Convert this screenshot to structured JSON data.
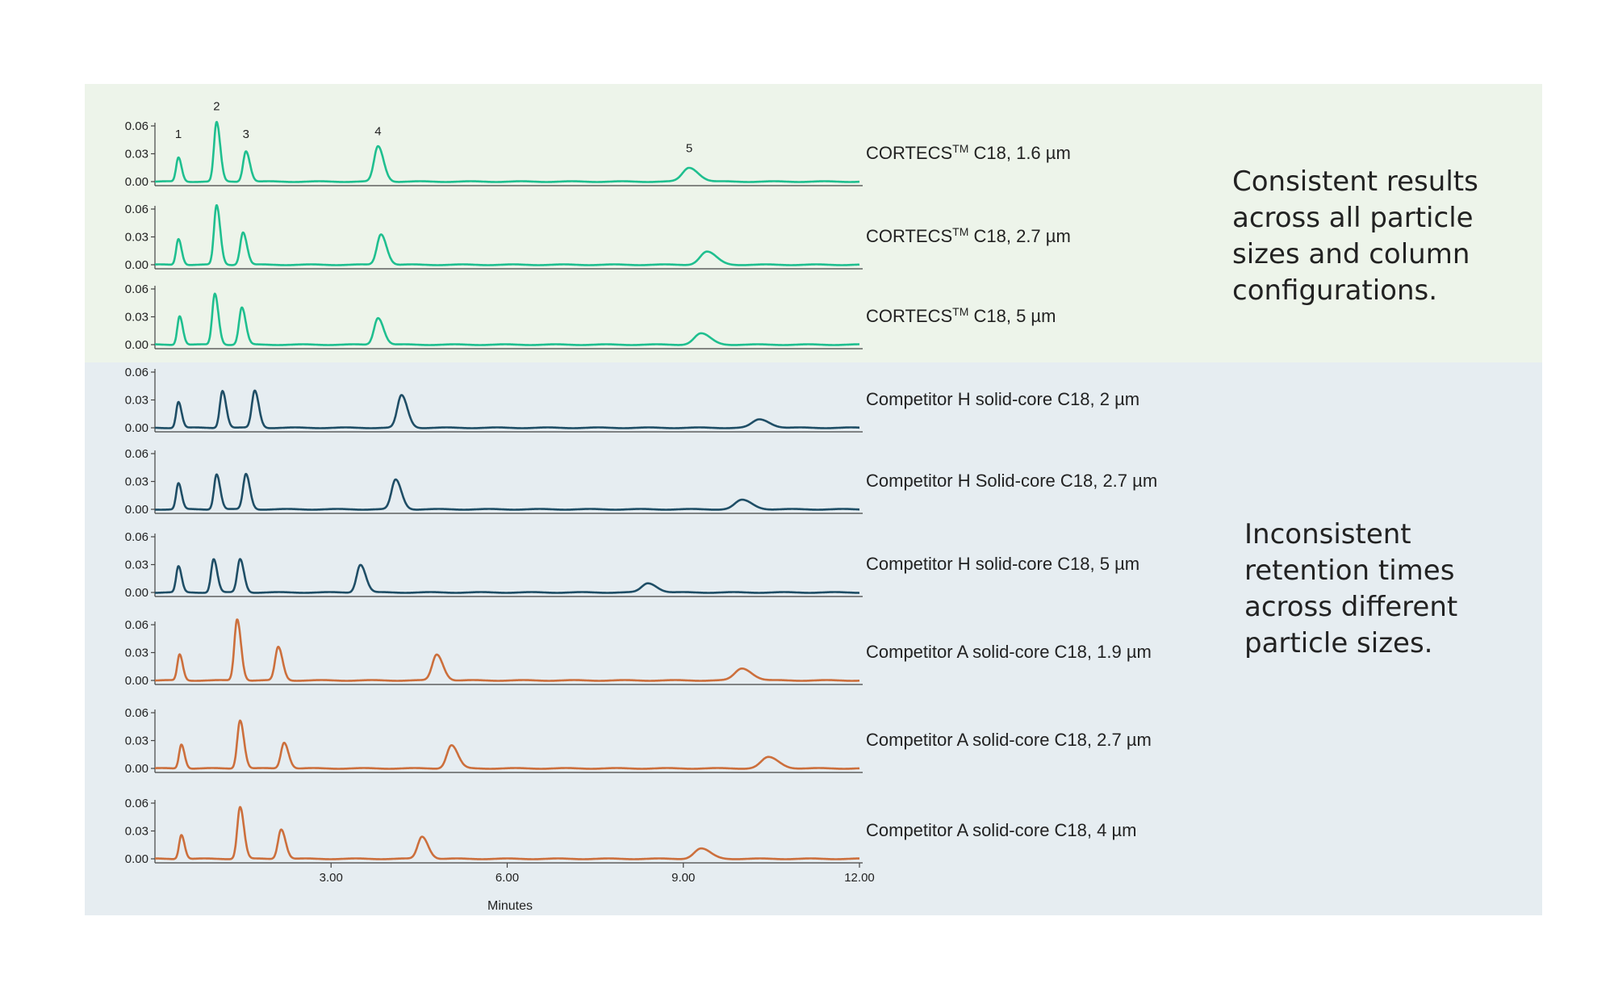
{
  "colors": {
    "cortecs": "#1fbf8f",
    "competitor_h": "#1f4e66",
    "competitor_a": "#cc6f3c",
    "band_top": "#edf4ea",
    "band_bottom": "#e6edf1",
    "axis": "#444444"
  },
  "groups": [
    {
      "note": "Consistent results across all particle sizes and column configurations."
    },
    {
      "note": "Inconsistent retention times across different particle sizes."
    }
  ],
  "chart_data": {
    "type": "line",
    "xlabel": "Minutes",
    "xlim": [
      0,
      12.0
    ],
    "xticks": [
      "3.00",
      "6.00",
      "9.00",
      "12.00"
    ],
    "ylim": [
      0,
      0.06
    ],
    "yticks": [
      "0.00",
      "0.03",
      "0.06"
    ],
    "peak_labels": [
      {
        "label": "1",
        "x": 0.4,
        "y": 0.04
      },
      {
        "label": "2",
        "x": 1.05,
        "y": 0.07
      },
      {
        "label": "3",
        "x": 1.55,
        "y": 0.04
      },
      {
        "label": "4",
        "x": 3.8,
        "y": 0.043
      },
      {
        "label": "5",
        "x": 9.1,
        "y": 0.025
      }
    ],
    "series": [
      {
        "name": "CORTECS™ C18, 1.6 µm",
        "name_main": "CORTECS",
        "name_sup": "TM",
        "name_rest": " C18, 1.6 µm",
        "group": "cortecs",
        "retention_times": [
          0.4,
          1.05,
          1.55,
          3.8,
          9.1
        ],
        "heights": [
          0.026,
          0.064,
          0.033,
          0.038,
          0.015
        ]
      },
      {
        "name": "CORTECS™ C18, 2.7 µm",
        "name_main": "CORTECS",
        "name_sup": "TM",
        "name_rest": " C18, 2.7 µm",
        "group": "cortecs",
        "retention_times": [
          0.4,
          1.05,
          1.5,
          3.85,
          9.4
        ],
        "heights": [
          0.028,
          0.064,
          0.035,
          0.033,
          0.014
        ]
      },
      {
        "name": "CORTECS™ C18, 5 µm",
        "name_main": "CORTECS",
        "name_sup": "TM",
        "name_rest": " C18, 5 µm",
        "group": "cortecs",
        "retention_times": [
          0.42,
          1.02,
          1.48,
          3.8,
          9.3
        ],
        "heights": [
          0.031,
          0.055,
          0.04,
          0.029,
          0.012
        ]
      },
      {
        "name": "Competitor H solid-core C18, 2 µm",
        "name_main": "Competitor H solid-core C18, 2 µm",
        "group": "competitor_h",
        "retention_times": [
          0.4,
          1.15,
          1.7,
          4.2,
          10.3
        ],
        "heights": [
          0.028,
          0.04,
          0.04,
          0.035,
          0.009
        ]
      },
      {
        "name": "Competitor H Solid-core C18, 2.7 µm",
        "name_main": "Competitor H Solid-core C18, 2.7 µm",
        "group": "competitor_h",
        "retention_times": [
          0.4,
          1.05,
          1.55,
          4.1,
          10.0
        ],
        "heights": [
          0.028,
          0.038,
          0.038,
          0.032,
          0.01
        ]
      },
      {
        "name": "Competitor H solid-core C18, 5 µm",
        "name_main": "Competitor H solid-core C18, 5 µm",
        "group": "competitor_h",
        "retention_times": [
          0.4,
          1.0,
          1.45,
          3.5,
          8.4
        ],
        "heights": [
          0.028,
          0.036,
          0.036,
          0.03,
          0.01
        ]
      },
      {
        "name": "Competitor A solid-core C18, 1.9 µm",
        "name_main": "Competitor A solid-core C18, 1.9 µm",
        "group": "competitor_a",
        "retention_times": [
          0.42,
          1.4,
          2.1,
          4.8,
          10.0
        ],
        "heights": [
          0.028,
          0.066,
          0.036,
          0.028,
          0.013
        ]
      },
      {
        "name": "Competitor A solid-core C18, 2.7 µm",
        "name_main": "Competitor A solid-core C18, 2.7 µm",
        "group": "competitor_a",
        "retention_times": [
          0.45,
          1.45,
          2.2,
          5.05,
          10.45
        ],
        "heights": [
          0.026,
          0.052,
          0.028,
          0.025,
          0.012
        ]
      },
      {
        "name": "Competitor A solid-core C18, 4 µm",
        "name_main": "Competitor A solid-core C18, 4 µm",
        "group": "competitor_a",
        "retention_times": [
          0.45,
          1.45,
          2.15,
          4.55,
          9.3
        ],
        "heights": [
          0.026,
          0.056,
          0.032,
          0.024,
          0.011
        ]
      }
    ]
  }
}
